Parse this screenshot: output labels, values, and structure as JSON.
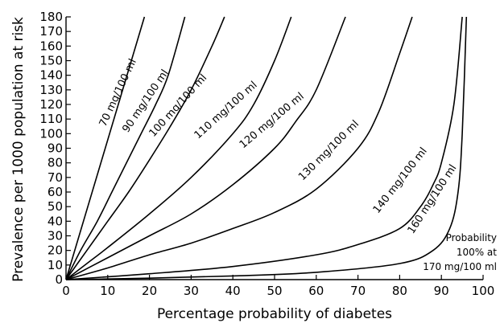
{
  "chart_data": {
    "type": "line",
    "xlabel": "Percentage probability of diabetes",
    "ylabel": "Prevalence per 1000 population at risk",
    "xlim": [
      0,
      100
    ],
    "ylim": [
      0,
      180
    ],
    "xticks": [
      "0",
      "10",
      "20",
      "30",
      "40",
      "50",
      "60",
      "70",
      "80",
      "90",
      "100"
    ],
    "yticks": [
      "0",
      "10",
      "20",
      "30",
      "40",
      "50",
      "60",
      "70",
      "80",
      "90",
      "100",
      "110",
      "120",
      "130",
      "140",
      "150",
      "160",
      "170",
      "180"
    ],
    "grid": false,
    "series": [
      {
        "name": "70 mg/100 ml",
        "x": [
          0,
          18.8
        ],
        "y": [
          0,
          180
        ]
      },
      {
        "name": "90 mg/100 ml",
        "x": [
          0,
          3.5,
          7.5,
          11,
          14.5,
          18,
          21.5,
          24.5,
          28.5
        ],
        "y": [
          0,
          20,
          40,
          60,
          80,
          100,
          120,
          140,
          180
        ]
      },
      {
        "name": "100 mg/100 ml",
        "x": [
          0,
          5,
          10,
          15,
          20,
          25,
          30,
          35,
          38
        ],
        "y": [
          0,
          20,
          40,
          60,
          82,
          105,
          130,
          160,
          180
        ]
      },
      {
        "name": "110 mg/100 ml",
        "x": [
          0,
          5,
          10,
          20,
          30,
          40,
          45,
          50,
          54
        ],
        "y": [
          0,
          11,
          22,
          45,
          70,
          100,
          120,
          150,
          180
        ]
      },
      {
        "name": "120 mg/100 ml",
        "x": [
          0,
          10,
          20,
          30,
          40,
          50,
          55,
          60,
          67
        ],
        "y": [
          0,
          15,
          30,
          45,
          65,
          90,
          108,
          130,
          180
        ]
      },
      {
        "name": "130 mg/100 ml",
        "x": [
          0,
          10,
          20,
          30,
          40,
          50,
          60,
          70,
          75,
          80,
          83
        ],
        "y": [
          0,
          8,
          17,
          25,
          35,
          46,
          62,
          90,
          115,
          155,
          180
        ]
      },
      {
        "name": "140 mg/100 ml",
        "x": [
          0,
          20,
          40,
          60,
          70,
          80,
          85,
          88,
          90,
          93,
          95
        ],
        "y": [
          0,
          4,
          9,
          17,
          24,
          35,
          50,
          65,
          80,
          120,
          180
        ]
      },
      {
        "name": "160 mg/100 ml",
        "x": [
          0,
          20,
          40,
          60,
          80,
          88,
          92,
          94,
          95,
          96
        ],
        "y": [
          0,
          1,
          2.5,
          5,
          11,
          20,
          35,
          60,
          100,
          180
        ]
      }
    ],
    "annotations": {
      "note_lines": [
        "Probability",
        "100% at",
        "170 mg/100 ml"
      ]
    }
  }
}
